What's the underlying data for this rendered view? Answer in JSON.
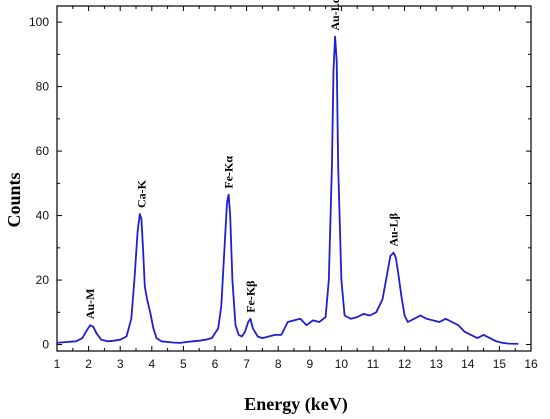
{
  "chart_data": {
    "type": "line",
    "title": "",
    "xlabel": "Energy (keV)",
    "ylabel": "Counts",
    "xlim": [
      1,
      16
    ],
    "ylim": [
      -2,
      105
    ],
    "x_ticks": [
      1,
      2,
      3,
      4,
      5,
      6,
      7,
      8,
      9,
      10,
      11,
      12,
      13,
      14,
      15,
      16
    ],
    "y_ticks": [
      0,
      20,
      40,
      60,
      80,
      100
    ],
    "grid": false,
    "line_color": "#1f1fd0",
    "series": [
      {
        "x": [
          1.0,
          1.3,
          1.6,
          1.8,
          1.95,
          2.05,
          2.15,
          2.25,
          2.4,
          2.6,
          2.8,
          3.0,
          3.2,
          3.35,
          3.45,
          3.55,
          3.62,
          3.67,
          3.72,
          3.78,
          3.85,
          3.95,
          4.05,
          4.15,
          4.3,
          4.5,
          4.7,
          4.9,
          5.1,
          5.3,
          5.5,
          5.7,
          5.9,
          6.1,
          6.2,
          6.3,
          6.38,
          6.43,
          6.48,
          6.55,
          6.65,
          6.75,
          6.85,
          6.95,
          7.05,
          7.12,
          7.2,
          7.35,
          7.5,
          7.7,
          7.9,
          8.1,
          8.3,
          8.5,
          8.7,
          8.9,
          9.1,
          9.3,
          9.5,
          9.6,
          9.7,
          9.75,
          9.8,
          9.85,
          9.9,
          10.0,
          10.1,
          10.3,
          10.5,
          10.7,
          10.9,
          11.1,
          11.3,
          11.45,
          11.55,
          11.65,
          11.72,
          11.8,
          11.9,
          12.0,
          12.1,
          12.3,
          12.5,
          12.7,
          12.9,
          13.1,
          13.3,
          13.5,
          13.7,
          13.9,
          14.1,
          14.3,
          14.5,
          14.7,
          14.9,
          15.1,
          15.3,
          15.6
        ],
        "y": [
          0.5,
          0.8,
          1.0,
          2.0,
          4.5,
          6.0,
          5.5,
          3.5,
          1.5,
          1.0,
          1.2,
          1.5,
          2.5,
          8.0,
          20.0,
          35.0,
          40.5,
          39.0,
          30.0,
          18.0,
          14.0,
          10.0,
          5.0,
          2.0,
          1.0,
          0.8,
          0.6,
          0.5,
          0.8,
          1.0,
          1.2,
          1.5,
          2.0,
          5.0,
          12.0,
          30.0,
          44.0,
          46.5,
          40.0,
          20.0,
          6.0,
          3.0,
          2.5,
          4.0,
          7.0,
          8.0,
          5.0,
          2.5,
          2.0,
          2.5,
          3.0,
          3.0,
          7.0,
          7.5,
          8.0,
          6.0,
          7.5,
          7.0,
          8.5,
          20.0,
          55.0,
          85.0,
          95.5,
          88.0,
          55.0,
          20.0,
          9.0,
          8.0,
          8.5,
          9.5,
          9.0,
          10.0,
          14.0,
          22.0,
          27.5,
          28.5,
          27.0,
          22.0,
          15.0,
          9.0,
          7.0,
          8.0,
          9.0,
          8.0,
          7.5,
          7.0,
          8.0,
          7.0,
          6.0,
          4.0,
          3.0,
          2.0,
          3.0,
          2.0,
          1.0,
          0.5,
          0.3,
          0.2
        ]
      }
    ],
    "annotations": [
      {
        "text": "Au-M",
        "x": 2.05,
        "y": 6.0
      },
      {
        "text": "Ca-K",
        "x": 3.67,
        "y": 40.5
      },
      {
        "text": "Fe-Kα",
        "x": 6.43,
        "y": 46.5
      },
      {
        "text": "Fe-Kβ",
        "x": 7.12,
        "y": 8.0
      },
      {
        "text": "Au-Lα",
        "x": 9.8,
        "y": 95.5
      },
      {
        "text": "Au-Lβ",
        "x": 11.65,
        "y": 28.5
      }
    ]
  }
}
